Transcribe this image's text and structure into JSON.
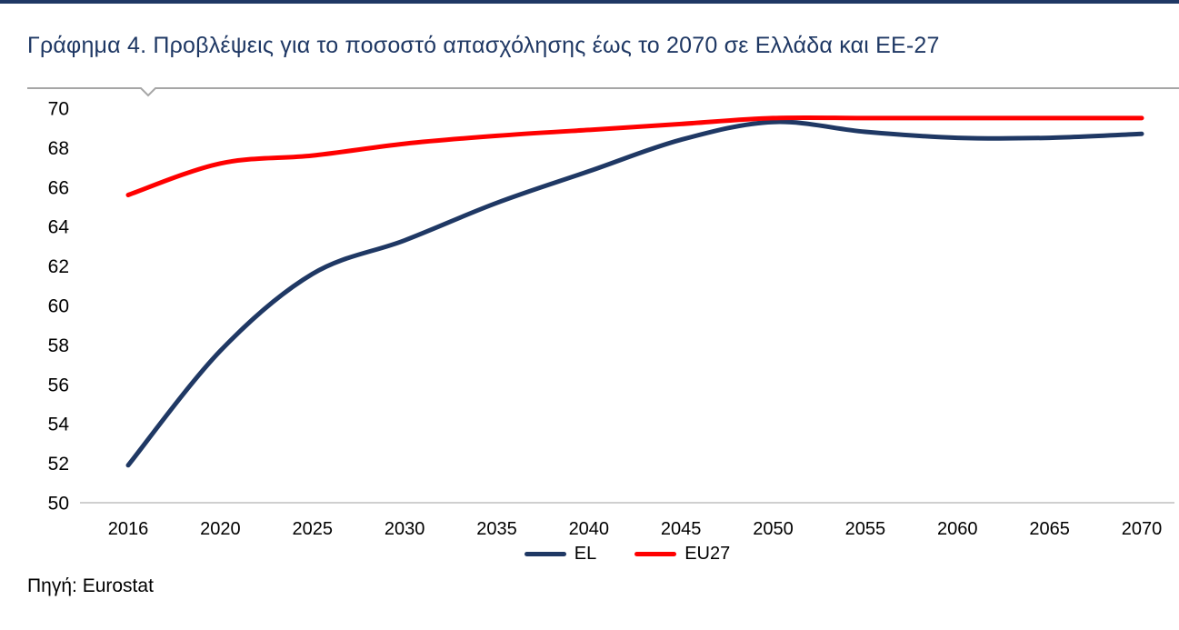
{
  "page": {
    "title": "Γράφημα 4. Προβλέψεις για το ποσοστό απασχόλησης έως το 2070 σε Ελλάδα και ΕΕ-27",
    "source": "Πηγή: Eurostat"
  },
  "colors": {
    "title_text": "#1F3864",
    "top_border": "#1F3864",
    "divider": "#A6A6A6",
    "axis_line": "#BFBFBF",
    "tick_text": "#000000"
  },
  "chart_data": {
    "type": "line",
    "title": "Γράφημα 4. Προβλέψεις για το ποσοστό απασχόλησης έως το 2070 σε Ελλάδα και ΕΕ-27",
    "categories": [
      "2016",
      "2020",
      "2025",
      "2030",
      "2035",
      "2040",
      "2045",
      "2050",
      "2055",
      "2060",
      "2065",
      "2070"
    ],
    "series": [
      {
        "name": "EL",
        "color": "#1F3864",
        "values": [
          51.9,
          57.7,
          61.6,
          63.3,
          65.2,
          66.8,
          68.4,
          69.3,
          68.8,
          68.5,
          68.5,
          68.7
        ]
      },
      {
        "name": "EU27",
        "color": "#FF0000",
        "values": [
          65.6,
          67.2,
          67.6,
          68.2,
          68.6,
          68.9,
          69.2,
          69.5,
          69.5,
          69.5,
          69.5,
          69.5
        ]
      }
    ],
    "xlabel": "",
    "ylabel": "",
    "ylim": [
      50,
      70
    ],
    "ytick_step": 2,
    "grid": false,
    "legend_position": "bottom-center",
    "smooth_lines": true,
    "source_note": "Πηγή: Eurostat"
  }
}
